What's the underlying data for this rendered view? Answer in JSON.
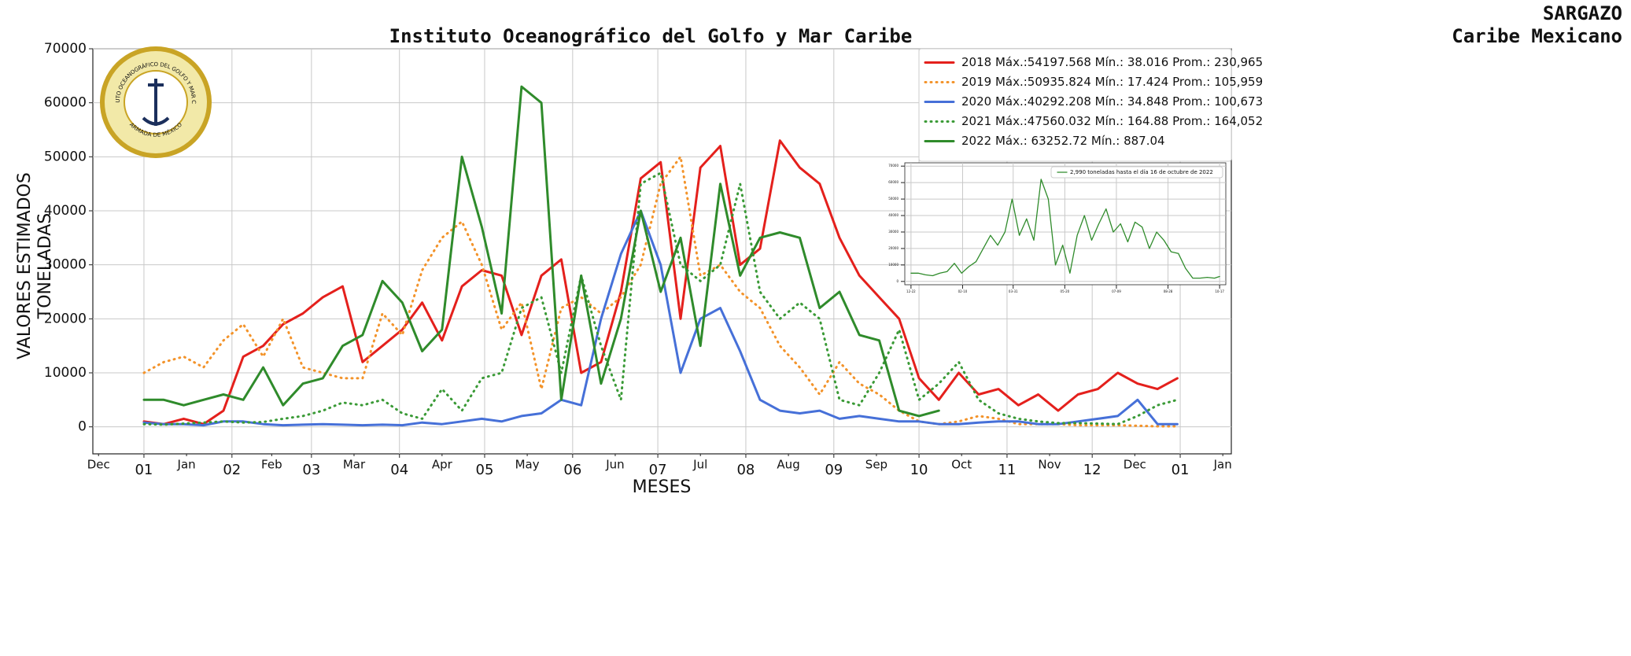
{
  "logo": {
    "top": "INSTITUTO OCEANOGRÁFICO DEL GOLFO Y MAR CARIBE",
    "bottom": "ARMADA DE MÉXICO"
  },
  "chart_data": [
    {
      "type": "line",
      "title": "Instituto Oceanográfico del Golfo y Mar Caribe",
      "subtitle": [
        "SARGAZO",
        "Caribe Mexicano"
      ],
      "xlabel": "MESES",
      "ylabel": [
        "VALORES ESTIMADOS",
        "TONELADAS"
      ],
      "xlim": [
        -18,
        383
      ],
      "ylim": [
        -5000,
        70000
      ],
      "yticks": [
        0,
        10000,
        20000,
        30000,
        40000,
        50000,
        60000,
        70000
      ],
      "xticks": [
        {
          "value": 0,
          "label": "01"
        },
        {
          "value": 31,
          "label": "02"
        },
        {
          "value": 59,
          "label": "03"
        },
        {
          "value": 90,
          "label": "04"
        },
        {
          "value": 120,
          "label": "05"
        },
        {
          "value": 151,
          "label": "06"
        },
        {
          "value": 181,
          "label": "07"
        },
        {
          "value": 212,
          "label": "08"
        },
        {
          "value": 243,
          "label": "09"
        },
        {
          "value": 273,
          "label": "10"
        },
        {
          "value": 304,
          "label": "11"
        },
        {
          "value": 334,
          "label": "12"
        },
        {
          "value": 365,
          "label": "01"
        }
      ],
      "month_ticks": [
        {
          "value": -16,
          "label": "Dec"
        },
        {
          "value": 15,
          "label": "Jan"
        },
        {
          "value": 45,
          "label": "Feb"
        },
        {
          "value": 74,
          "label": "Mar"
        },
        {
          "value": 105,
          "label": "Apr"
        },
        {
          "value": 135,
          "label": "May"
        },
        {
          "value": 166,
          "label": "Jun"
        },
        {
          "value": 196,
          "label": "Jul"
        },
        {
          "value": 227,
          "label": "Aug"
        },
        {
          "value": 258,
          "label": "Sep"
        },
        {
          "value": 288,
          "label": "Oct"
        },
        {
          "value": 319,
          "label": "Nov"
        },
        {
          "value": 349,
          "label": "Dec"
        },
        {
          "value": 380,
          "label": "Jan"
        }
      ],
      "grid": true,
      "legend": "upper right",
      "x": [
        0,
        7,
        14,
        21,
        28,
        35,
        42,
        49,
        56,
        63,
        70,
        77,
        84,
        91,
        98,
        105,
        112,
        119,
        126,
        133,
        140,
        147,
        154,
        161,
        168,
        175,
        182,
        189,
        196,
        203,
        210,
        217,
        224,
        231,
        238,
        245,
        252,
        259,
        266,
        273,
        280,
        287,
        294,
        301,
        308,
        315,
        322,
        329,
        336,
        343,
        350,
        357,
        364
      ],
      "series": [
        {
          "name": "2018 Máx.:54197.568 Mín.: 38.016 Prom.: 230,965",
          "color": "#e4201c",
          "linestyle": "solid",
          "values": [
            1000,
            500,
            1500,
            500,
            3000,
            13000,
            15000,
            19000,
            21000,
            24000,
            26000,
            12000,
            15000,
            18000,
            23000,
            16000,
            26000,
            29000,
            28000,
            17000,
            28000,
            31000,
            10000,
            12000,
            25000,
            46000,
            49000,
            20000,
            48000,
            52000,
            30000,
            33000,
            53000,
            48000,
            45000,
            35000,
            28000,
            24000,
            20000,
            9000,
            5000,
            10000,
            6000,
            7000,
            4000,
            6000,
            3000,
            6000,
            7000,
            10000,
            8000,
            7000,
            9000
          ]
        },
        {
          "name": "2019 Máx.:50935.824 Mín.: 17.424 Prom.: 105,959",
          "color": "#f3932a",
          "linestyle": "dotted",
          "values": [
            10000,
            12000,
            13000,
            11000,
            16000,
            19000,
            13000,
            20000,
            11000,
            10000,
            9000,
            9000,
            21000,
            17000,
            29000,
            35000,
            38000,
            30000,
            18000,
            23000,
            7000,
            22000,
            24000,
            21000,
            24000,
            30000,
            45000,
            50000,
            28000,
            30000,
            25000,
            22000,
            15000,
            11000,
            6000,
            12000,
            8000,
            6000,
            3000,
            1000,
            500,
            1000,
            2000,
            1500,
            500,
            500,
            500,
            300,
            300,
            300,
            200,
            100,
            100
          ]
        },
        {
          "name": "2020 Máx.:40292.208 Mín.: 34.848 Prom.: 100,673",
          "color": "#4670d8",
          "linestyle": "solid",
          "values": [
            800,
            500,
            500,
            300,
            1000,
            1000,
            500,
            300,
            400,
            500,
            400,
            300,
            400,
            300,
            800,
            500,
            1000,
            1500,
            1000,
            2000,
            2500,
            5000,
            4000,
            20000,
            32000,
            40000,
            30000,
            10000,
            20000,
            22000,
            14000,
            5000,
            3000,
            2500,
            3000,
            1500,
            2000,
            1500,
            1000,
            1000,
            500,
            500,
            800,
            1000,
            1000,
            500,
            500,
            1000,
            1500,
            2000,
            5000,
            500,
            500
          ]
        },
        {
          "name": "2021 Máx.:47560.032 Mín.: 164.88 Prom.: 164,052",
          "color": "#3a9a36",
          "linestyle": "dotted",
          "values": [
            500,
            400,
            600,
            800,
            1000,
            800,
            900,
            1500,
            2000,
            3000,
            4500,
            4000,
            5000,
            2500,
            1500,
            7000,
            3000,
            9000,
            10000,
            22000,
            24000,
            10000,
            28000,
            15000,
            5000,
            45000,
            47000,
            30000,
            27000,
            30000,
            45000,
            25000,
            20000,
            23000,
            20000,
            5000,
            4000,
            10000,
            18000,
            5000,
            8000,
            12000,
            5000,
            2500,
            1500,
            1000,
            700,
            700,
            600,
            500,
            2000,
            4000,
            5000
          ]
        },
        {
          "name": "2022 Máx.: 63252.72  Mín.: 887.04",
          "color": "#2f8b2b",
          "linestyle": "solid",
          "values": [
            5000,
            5000,
            4000,
            5000,
            6000,
            5000,
            11000,
            4000,
            8000,
            9000,
            15000,
            17000,
            27000,
            23000,
            14000,
            18000,
            50000,
            37000,
            21000,
            63000,
            60000,
            5000,
            28000,
            8000,
            20000,
            40000,
            25000,
            35000,
            15000,
            45000,
            28000,
            35000,
            36000,
            35000,
            22000,
            25000,
            17000,
            16000,
            3000,
            2000,
            3000,
            null,
            null,
            null,
            null,
            null,
            null,
            null,
            null,
            null,
            null,
            null,
            null
          ]
        }
      ]
    },
    {
      "type": "line",
      "xlim": [
        -6,
        305
      ],
      "ylim": [
        -2000,
        72000
      ],
      "yticks": [
        0,
        10000,
        20000,
        30000,
        40000,
        50000,
        60000,
        70000
      ],
      "xticks": [
        {
          "value": 0,
          "label": "12-22"
        },
        {
          "value": 50,
          "label": "02-10"
        },
        {
          "value": 99,
          "label": "03-31"
        },
        {
          "value": 149,
          "label": "05-20"
        },
        {
          "value": 199,
          "label": "07-09"
        },
        {
          "value": 249,
          "label": "08-28"
        },
        {
          "value": 299,
          "label": "10-17"
        }
      ],
      "grid": true,
      "legend": "upper right",
      "x": [
        0,
        7,
        14,
        21,
        28,
        35,
        42,
        49,
        56,
        63,
        70,
        77,
        84,
        91,
        98,
        105,
        112,
        119,
        126,
        133,
        140,
        147,
        154,
        161,
        168,
        175,
        182,
        189,
        196,
        203,
        210,
        217,
        224,
        231,
        238,
        245,
        252,
        259,
        266,
        273,
        280,
        287,
        294,
        299
      ],
      "series": [
        {
          "name": "2,990 toneladas hasta el día 16 de octubre de 2022",
          "color": "#2f8b2b",
          "linestyle": "solid",
          "values": [
            5000,
            5000,
            4000,
            3500,
            5000,
            6000,
            11000,
            5000,
            9000,
            12000,
            20000,
            28000,
            22000,
            30000,
            50000,
            28000,
            38000,
            25000,
            62000,
            50000,
            10000,
            22000,
            5000,
            28000,
            40000,
            25000,
            35000,
            44000,
            30000,
            35000,
            24000,
            36000,
            33000,
            20000,
            30000,
            25000,
            18000,
            17000,
            8000,
            2000,
            2000,
            2500,
            2000,
            2990
          ]
        }
      ]
    }
  ]
}
